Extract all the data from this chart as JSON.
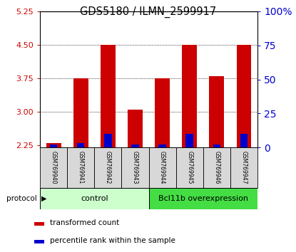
{
  "title": "GDS5180 / ILMN_2599917",
  "samples": [
    "GSM769940",
    "GSM769941",
    "GSM769942",
    "GSM769943",
    "GSM769944",
    "GSM769945",
    "GSM769946",
    "GSM769947"
  ],
  "red_values": [
    2.3,
    3.75,
    4.5,
    3.05,
    3.75,
    4.5,
    3.8,
    4.5
  ],
  "blue_pct": [
    2,
    3,
    10,
    2,
    2,
    10,
    2,
    10
  ],
  "y_min": 2.2,
  "y_max": 5.25,
  "y_ticks": [
    2.25,
    3.0,
    3.75,
    4.5,
    5.25
  ],
  "y2_ticks": [
    0,
    25,
    50,
    75,
    100
  ],
  "control_label": "control",
  "bcl11b_label": "Bcl11b overexpression",
  "protocol_label": "protocol",
  "legend_red": "transformed count",
  "legend_blue": "percentile rank within the sample",
  "bar_width": 0.55,
  "red_color": "#cc0000",
  "blue_color": "#0000cc",
  "control_bg": "#ccffcc",
  "bcl11b_bg": "#44dd44",
  "tick_color_red": "#cc0000",
  "tick_color_blue": "#0000cc",
  "grid_lines": [
    3.0,
    3.75,
    4.5
  ],
  "n_control": 4,
  "n_bcl": 4
}
